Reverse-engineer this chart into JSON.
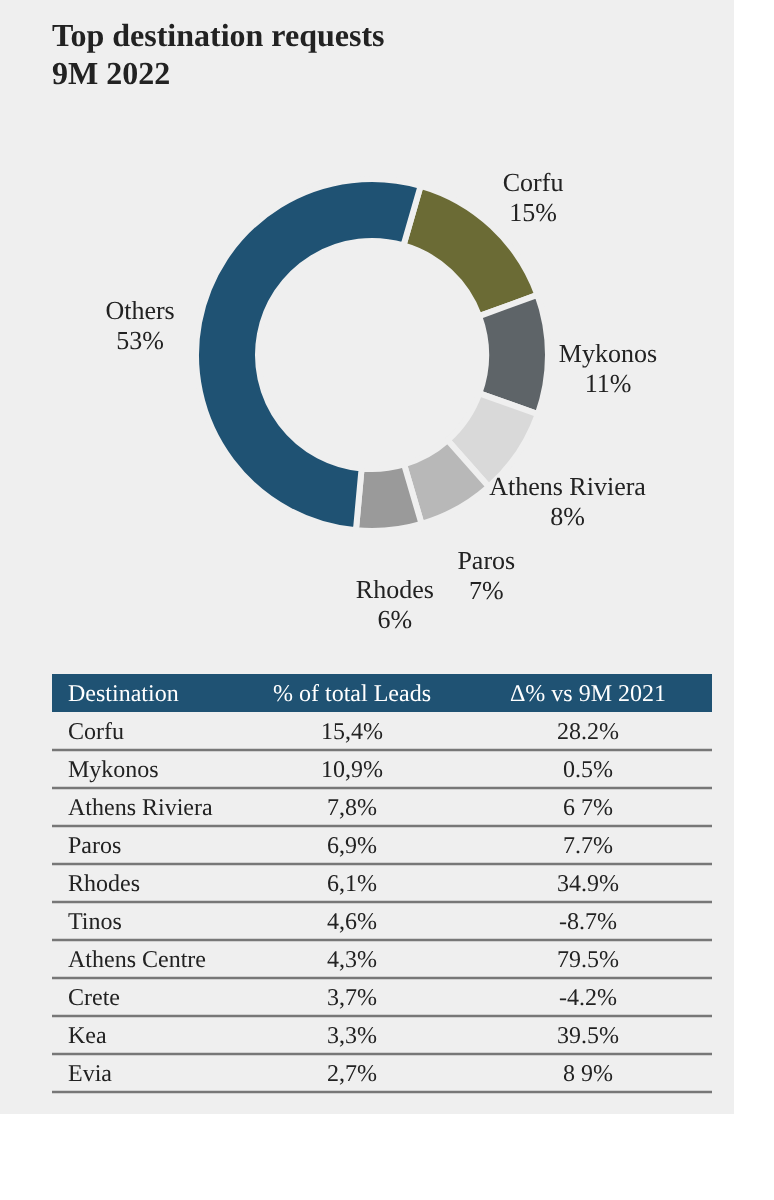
{
  "chart_data": [
    {
      "type": "donut",
      "title": "Top destination requests",
      "subtitle": "9M 2022",
      "categories": [
        "Corfu",
        "Mykonos",
        "Athens Riviera",
        "Paros",
        "Rhodes",
        "Others"
      ],
      "values": [
        15,
        11,
        8,
        7,
        6,
        53
      ],
      "value_labels": [
        "15%",
        "11%",
        "8%",
        "7%",
        "6%",
        "53%"
      ],
      "colors": [
        "#6b6b35",
        "#5e6468",
        "#d9d9d9",
        "#b8b8b8",
        "#9a9a9a",
        "#1f5273"
      ]
    },
    {
      "type": "other",
      "annotations": [
        "Destination",
        "% of total Leads",
        "Δ% vs 9M 2021",
        "Corfu",
        "15,4%",
        "28.2%",
        "Mykonos",
        "10,9%",
        "0.5%",
        "Athens Riviera",
        "7,8%",
        "6 7%",
        "Paros",
        "6,9%",
        "7.7%",
        "Rhodes",
        "6,1%",
        "34.9%",
        "Tinos",
        "4,6%",
        "-8.7%",
        "Athens Centre",
        "4,3%",
        "79.5%",
        "Crete",
        "3,7%",
        "-4.2%",
        "Kea",
        "3,3%",
        "39.5%",
        "Evia",
        "2,7%",
        "8 9%"
      ]
    }
  ]
}
